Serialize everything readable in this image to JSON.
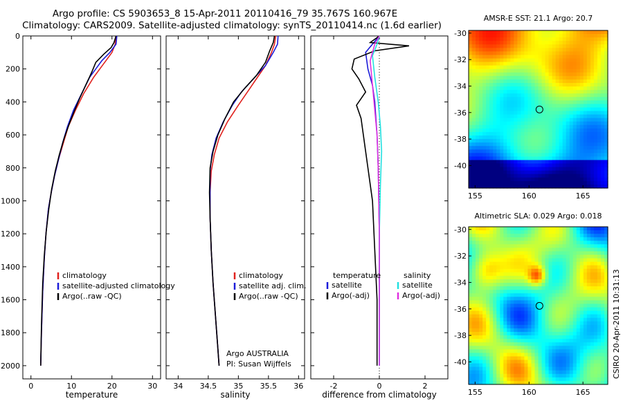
{
  "title": {
    "line1": "Argo profile: CS 5903653_8 15-Apr-2011 20110416_79 35.767S 160.967E",
    "line2": "Climatology: CARS2009. Satellite-adjusted climatology: synTS_20110414.nc (1.6d earlier)"
  },
  "side_label": "CSIRO 20-Apr-2011 10:31:13",
  "colors": {
    "clim": "#e0201c",
    "sat": "#1a1ad8",
    "argo": "#000000",
    "cyan": "#22e0e0",
    "magenta": "#e030e0"
  },
  "chart_data": [
    {
      "type": "line",
      "name": "temperature-profile",
      "xlabel": "temperature",
      "xlim": [
        -2,
        32
      ],
      "ylim": [
        2080,
        0
      ],
      "xticks": [
        "0",
        "10",
        "20",
        "30"
      ],
      "xtick_values": [
        0,
        10,
        20,
        30
      ],
      "yticks": [
        "0",
        "200",
        "400",
        "600",
        "800",
        "1000",
        "1200",
        "1400",
        "1600",
        "1800",
        "2000"
      ],
      "ytick_values": [
        0,
        200,
        400,
        600,
        800,
        1000,
        1200,
        1400,
        1600,
        1800,
        2000
      ],
      "legend": [
        "climatology",
        "satellite-adjusted climatology",
        "Argo(..raw -QC)"
      ],
      "series": [
        {
          "name": "climatology",
          "color": "#e0201c",
          "x": [
            21,
            20.8,
            20,
            18.5,
            17,
            15.5,
            13,
            11,
            9.2,
            8,
            6.8,
            5.8,
            5,
            4.3,
            3.7,
            3.3,
            2.9,
            2.6,
            2.4
          ],
          "y": [
            0,
            50,
            100,
            150,
            200,
            250,
            350,
            450,
            550,
            650,
            750,
            850,
            950,
            1050,
            1200,
            1350,
            1550,
            1800,
            2000
          ]
        },
        {
          "name": "satellite-adjusted climatology",
          "color": "#1a1ad8",
          "x": [
            21.2,
            21,
            19.5,
            17.5,
            16,
            14.5,
            12.5,
            10.5,
            9,
            7.8,
            6.8,
            5.8,
            5,
            4.3,
            3.7,
            3.3,
            2.9,
            2.6,
            2.4
          ],
          "y": [
            0,
            50,
            100,
            150,
            200,
            250,
            350,
            450,
            550,
            650,
            750,
            850,
            950,
            1050,
            1200,
            1350,
            1550,
            1800,
            2000
          ]
        },
        {
          "name": "Argo",
          "color": "#000000",
          "x": [
            21,
            20.5,
            19.8,
            18,
            16,
            15,
            13.5,
            12,
            10.8,
            9.5,
            8.2,
            7,
            6,
            5.1,
            4.4,
            3.8,
            3.3,
            2.9,
            2.6,
            2.4
          ],
          "y": [
            0,
            40,
            70,
            110,
            160,
            220,
            300,
            380,
            450,
            530,
            620,
            720,
            820,
            930,
            1050,
            1180,
            1330,
            1500,
            1750,
            2000
          ]
        }
      ]
    },
    {
      "type": "line",
      "name": "salinity-profile",
      "xlabel": "salinity",
      "xlim": [
        33.8,
        36.1
      ],
      "ylim": [
        2080,
        0
      ],
      "xticks": [
        "34",
        "34.5",
        "35",
        "35.5",
        "36"
      ],
      "xtick_values": [
        34,
        34.5,
        35,
        35.5,
        36
      ],
      "legend": [
        "climatology",
        "satellite adj. clim.",
        "Argo(..raw -QC)"
      ],
      "annotation": [
        "Argo AUSTRALIA",
        "PI: Susan Wijffels"
      ],
      "series": [
        {
          "name": "climatology",
          "color": "#e0201c",
          "x": [
            35.62,
            35.6,
            35.55,
            35.45,
            35.3,
            35.15,
            35,
            34.82,
            34.68,
            34.6,
            34.55,
            34.53,
            34.53,
            34.55,
            34.58,
            34.62,
            34.66,
            34.68
          ],
          "y": [
            0,
            50,
            100,
            180,
            260,
            340,
            420,
            520,
            620,
            720,
            820,
            950,
            1100,
            1300,
            1500,
            1700,
            1900,
            2000
          ]
        },
        {
          "name": "satellite adj. clim.",
          "color": "#1a1ad8",
          "x": [
            35.66,
            35.65,
            35.58,
            35.45,
            35.25,
            35.05,
            34.9,
            34.75,
            34.63,
            34.56,
            34.53,
            34.53,
            34.53,
            34.55,
            34.58,
            34.62,
            34.66,
            34.68
          ],
          "y": [
            0,
            50,
            100,
            180,
            260,
            340,
            420,
            520,
            620,
            720,
            820,
            950,
            1100,
            1300,
            1500,
            1700,
            1900,
            2000
          ]
        },
        {
          "name": "Argo",
          "color": "#000000",
          "x": [
            35.6,
            35.58,
            35.52,
            35.45,
            35.3,
            35.1,
            34.92,
            34.78,
            34.66,
            34.58,
            34.53,
            34.52,
            34.53,
            34.55,
            34.58,
            34.62,
            34.66,
            34.68
          ],
          "y": [
            0,
            40,
            90,
            160,
            240,
            320,
            400,
            500,
            600,
            700,
            800,
            950,
            1100,
            1300,
            1500,
            1700,
            1900,
            2000
          ]
        }
      ]
    },
    {
      "type": "line",
      "name": "difference-profile",
      "xlabel": "difference from climatology",
      "xlim": [
        -3.0,
        3.0
      ],
      "ylim": [
        2080,
        0
      ],
      "xticks": [
        "-2",
        "0",
        "2"
      ],
      "xtick_values": [
        -2,
        0,
        2
      ],
      "legend_left": [
        "temperature",
        "satellite",
        "Argo(-adj)"
      ],
      "legend_right": [
        "salinity",
        "satellite",
        "Argo(-adj)"
      ],
      "series": [
        {
          "name": "temperature satellite",
          "color": "#1a1ad8",
          "x": [
            0,
            -0.3,
            -0.6,
            -0.5,
            -0.3,
            -0.2,
            -0.15,
            -0.1,
            -0.05,
            0,
            0
          ],
          "y": [
            0,
            50,
            100,
            200,
            300,
            400,
            500,
            600,
            800,
            1200,
            2000
          ]
        },
        {
          "name": "temperature Argo(-adj)",
          "color": "#000000",
          "x": [
            0,
            -0.4,
            1.3,
            -0.2,
            -1.1,
            -1.2,
            -0.9,
            -0.6,
            -1.0,
            -0.8,
            -0.7,
            -0.5,
            -0.3,
            -0.2,
            -0.1,
            -0.1
          ],
          "y": [
            0,
            40,
            60,
            90,
            140,
            200,
            260,
            340,
            420,
            500,
            600,
            800,
            1000,
            1300,
            1600,
            2000
          ]
        },
        {
          "name": "salinity satellite",
          "color": "#22e0e0",
          "x": [
            0,
            -0.1,
            -0.3,
            -0.2,
            -0.05,
            0.05,
            0.1,
            0.05,
            0,
            0
          ],
          "y": [
            0,
            50,
            120,
            250,
            400,
            550,
            700,
            900,
            1200,
            2000
          ]
        },
        {
          "name": "salinity Argo(-adj)",
          "color": "#e030e0",
          "x": [
            0,
            -0.2,
            -0.4,
            -0.3,
            -0.2,
            -0.1,
            -0.05,
            0,
            0
          ],
          "y": [
            0,
            50,
            150,
            300,
            450,
            600,
            800,
            1200,
            2000
          ]
        }
      ]
    },
    {
      "type": "heatmap",
      "name": "sst-map",
      "title": "AMSR-E SST: 21.1 Argo: 20.7",
      "xlim": [
        154.4,
        167.3
      ],
      "ylim": [
        -41.7,
        -29.8
      ],
      "xticks": [
        "155",
        "160",
        "165"
      ],
      "xtick_values": [
        155,
        160,
        165
      ],
      "yticks": [
        "-30",
        "-32",
        "-34",
        "-36",
        "-38",
        "-40"
      ],
      "ytick_values": [
        -30,
        -32,
        -34,
        -36,
        -38,
        -40
      ],
      "marker": {
        "lon": 160.967,
        "lat": -35.767
      }
    },
    {
      "type": "heatmap",
      "name": "sla-map",
      "title": "Altimetric SLA: 0.029 Argo: 0.018",
      "xlim": [
        154.4,
        167.3
      ],
      "ylim": [
        -41.7,
        -29.8
      ],
      "xticks": [
        "155",
        "160",
        "165"
      ],
      "xtick_values": [
        155,
        160,
        165
      ],
      "yticks": [
        "-30",
        "-32",
        "-34",
        "-36",
        "-38",
        "-40"
      ],
      "ytick_values": [
        -30,
        -32,
        -34,
        -36,
        -38,
        -40
      ],
      "marker": {
        "lon": 160.967,
        "lat": -35.767
      }
    }
  ]
}
